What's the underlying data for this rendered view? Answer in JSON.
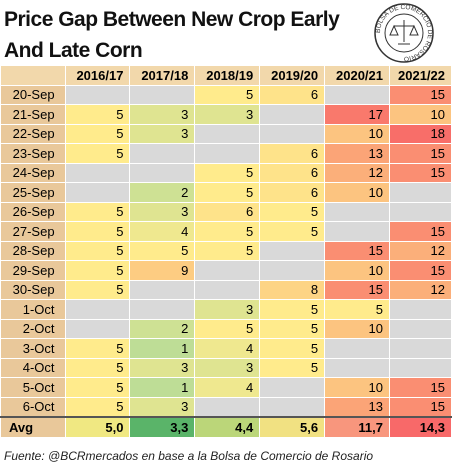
{
  "header": {
    "title": "Price Gap Between New Crop Early And Late Corn",
    "logo": "BOLSA DE COMERCIO DE ROSARIO"
  },
  "table": {
    "columns": [
      "2016/17",
      "2017/18",
      "2018/19",
      "2019/20",
      "2020/21",
      "2021/22"
    ],
    "rows": [
      {
        "label": "20-Sep",
        "values": [
          null,
          null,
          5,
          6,
          null,
          15
        ]
      },
      {
        "label": "21-Sep",
        "values": [
          5,
          3,
          3,
          null,
          17,
          10
        ]
      },
      {
        "label": "22-Sep",
        "values": [
          5,
          3,
          null,
          null,
          10,
          18
        ]
      },
      {
        "label": "23-Sep",
        "values": [
          5,
          null,
          null,
          6,
          13,
          15
        ]
      },
      {
        "label": "24-Sep",
        "values": [
          null,
          null,
          5,
          6,
          12,
          15
        ]
      },
      {
        "label": "25-Sep",
        "values": [
          null,
          2,
          5,
          6,
          10,
          null
        ]
      },
      {
        "label": "26-Sep",
        "values": [
          5,
          3,
          6,
          5,
          null,
          null
        ]
      },
      {
        "label": "27-Sep",
        "values": [
          5,
          4,
          5,
          5,
          null,
          15
        ]
      },
      {
        "label": "28-Sep",
        "values": [
          5,
          5,
          5,
          null,
          15,
          12
        ]
      },
      {
        "label": "29-Sep",
        "values": [
          5,
          9,
          null,
          null,
          10,
          15
        ]
      },
      {
        "label": "30-Sep",
        "values": [
          5,
          null,
          null,
          8,
          15,
          12
        ]
      },
      {
        "label": "1-Oct",
        "values": [
          null,
          null,
          3,
          5,
          5,
          null
        ]
      },
      {
        "label": "2-Oct",
        "values": [
          null,
          2,
          5,
          5,
          10,
          null
        ]
      },
      {
        "label": "3-Oct",
        "values": [
          5,
          1,
          4,
          5,
          null,
          null
        ]
      },
      {
        "label": "4-Oct",
        "values": [
          5,
          3,
          3,
          5,
          null,
          null
        ]
      },
      {
        "label": "5-Oct",
        "values": [
          5,
          1,
          4,
          null,
          10,
          15
        ]
      },
      {
        "label": "6-Oct",
        "values": [
          5,
          3,
          null,
          null,
          13,
          15
        ]
      }
    ],
    "average": {
      "label": "Avg",
      "values": [
        "5,0",
        "3,3",
        "4,4",
        "5,6",
        "11,7",
        "14,3"
      ]
    }
  },
  "footer": {
    "source": "Fuente: @BCRmercados en base a la Bolsa de Comercio de Rosario"
  }
}
